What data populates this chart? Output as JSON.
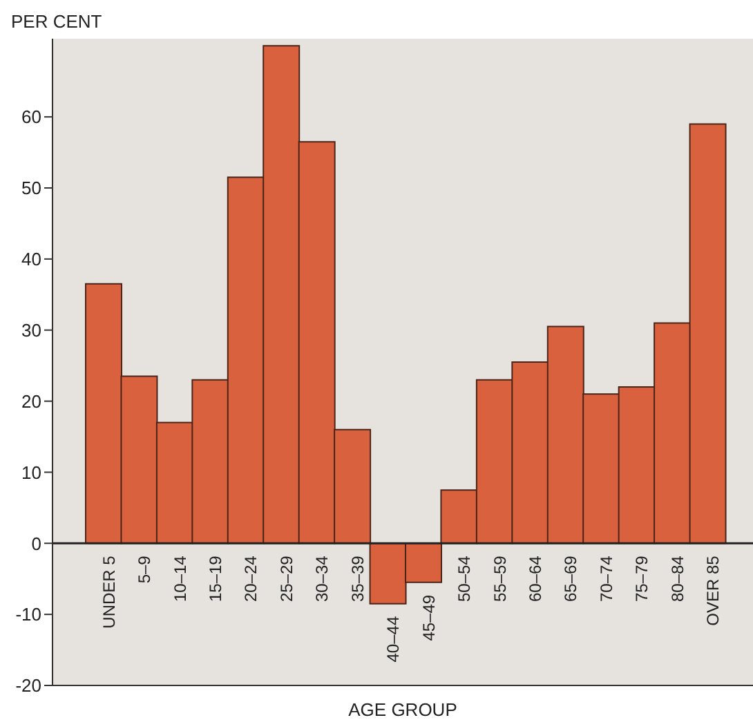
{
  "chart_data": {
    "type": "bar",
    "ylabel": "PER CENT",
    "xlabel": "AGE GROUP",
    "categories": [
      "UNDER 5",
      "5–9",
      "10–14",
      "15–19",
      "20–24",
      "25–29",
      "30–34",
      "35–39",
      "40–44",
      "45–49",
      "50–54",
      "55–59",
      "60–64",
      "65–69",
      "70–74",
      "75–79",
      "80–84",
      "OVER 85"
    ],
    "values": [
      36.5,
      23.5,
      17,
      23,
      51.5,
      70,
      56.5,
      16,
      -8.5,
      -5.5,
      7.5,
      23,
      25.5,
      30.5,
      21,
      22,
      31,
      59
    ],
    "color": "#d9613d",
    "ylim": [
      -20,
      71
    ],
    "yticks": [
      -20,
      -10,
      0,
      10,
      20,
      30,
      40,
      50,
      60
    ],
    "grid": false,
    "legend": false
  }
}
